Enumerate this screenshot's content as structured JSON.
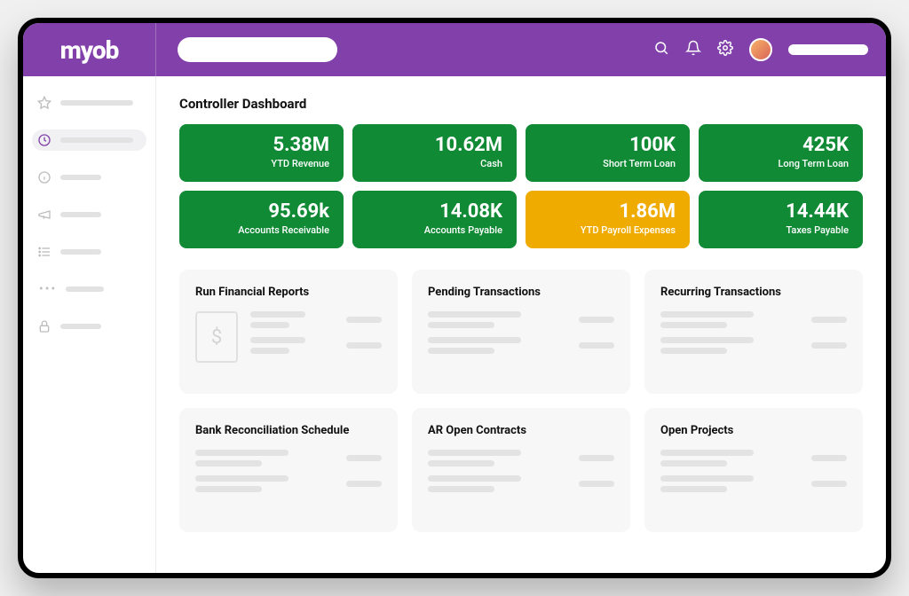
{
  "brand": {
    "name": "myob"
  },
  "colors": {
    "brand_purple": "#8241aa",
    "kpi_green": "#118a36",
    "kpi_amber": "#f0ab00",
    "card_bg": "#f7f7f8",
    "skeleton": "#e3e3e3"
  },
  "page": {
    "title": "Controller Dashboard"
  },
  "kpis": [
    {
      "value": "5.38M",
      "label": "YTD Revenue",
      "bg": "#118a36"
    },
    {
      "value": "10.62M",
      "label": "Cash",
      "bg": "#118a36"
    },
    {
      "value": "100K",
      "label": "Short Term Loan",
      "bg": "#118a36"
    },
    {
      "value": "425K",
      "label": "Long Term Loan",
      "bg": "#118a36"
    },
    {
      "value": "95.69k",
      "label": "Accounts Receivable",
      "bg": "#118a36"
    },
    {
      "value": "14.08K",
      "label": "Accounts Payable",
      "bg": "#118a36"
    },
    {
      "value": "1.86M",
      "label": "YTD Payroll Expenses",
      "bg": "#f0ab00"
    },
    {
      "value": "14.44K",
      "label": "Taxes Payable",
      "bg": "#118a36"
    }
  ],
  "cards": [
    {
      "title": "Run Financial Reports",
      "has_doc_icon": true
    },
    {
      "title": "Pending Transactions",
      "has_doc_icon": false
    },
    {
      "title": "Recurring Transactions",
      "has_doc_icon": false
    },
    {
      "title": "Bank Reconciliation Schedule",
      "has_doc_icon": false
    },
    {
      "title": "AR Open Contracts",
      "has_doc_icon": false
    },
    {
      "title": "Open Projects",
      "has_doc_icon": false
    }
  ],
  "sidebar": {
    "items": [
      {
        "icon": "star"
      },
      {
        "icon": "clock",
        "active": true
      },
      {
        "icon": "info"
      },
      {
        "icon": "megaphone"
      },
      {
        "icon": "list"
      }
    ],
    "footer_icon": "lock"
  }
}
